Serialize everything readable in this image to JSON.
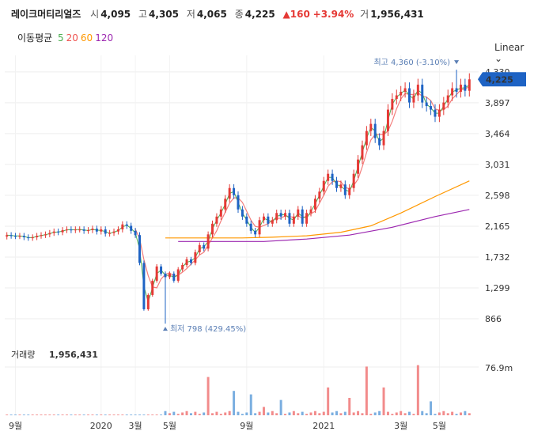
{
  "header": {
    "name": "레이크머티리얼즈",
    "open_label": "시",
    "open": "4,095",
    "high_label": "고",
    "high": "4,305",
    "low_label": "저",
    "low": "4,065",
    "close_label": "종",
    "close": "4,225",
    "change": "▲160",
    "change_pct": "+3.94%",
    "volume_label": "거",
    "volume": "1,956,431"
  },
  "ma_legend": {
    "label": "이동평균",
    "items": [
      {
        "period": "5",
        "color": "#4caf50"
      },
      {
        "period": "20",
        "color": "#ef5350"
      },
      {
        "period": "60",
        "color": "#ff9800"
      },
      {
        "period": "120",
        "color": "#9c27b0"
      }
    ]
  },
  "scale_toggle": {
    "label": "Linear",
    "icon": "chevron-down-icon"
  },
  "annotations": {
    "high": "최고 4,360 (-3.10%)",
    "low": "최저 798 (429.45%)",
    "current_price": "4,225"
  },
  "volume_panel": {
    "label": "거래량",
    "value": "1,956,431",
    "max_label": "76.9m"
  },
  "colors": {
    "up": "#e53935",
    "down": "#1e63c4",
    "ma5": "#4caf50",
    "ma20": "#ef5350",
    "ma60": "#ff9800",
    "ma120": "#9c27b0",
    "up_volume": "#f28b8b",
    "down_volume": "#7aaee0"
  },
  "chart_data": {
    "type": "candlestick",
    "price_axis": {
      "ticks": [
        "4,330",
        "3,897",
        "3,464",
        "3,031",
        "2,598",
        "2,165",
        "1,732",
        "1,299",
        "866"
      ],
      "range": [
        700,
        4450
      ]
    },
    "time_axis": {
      "labels": [
        "9월",
        "2020",
        "3월",
        "5월",
        "9월",
        "2021",
        "3월",
        "5월"
      ]
    },
    "label_weeks": [
      2,
      22,
      30,
      38,
      56,
      74,
      92,
      101
    ],
    "weeks": 109,
    "closes": [
      2040,
      2030,
      2025,
      2030,
      2010,
      2000,
      2010,
      2030,
      2040,
      2050,
      2070,
      2090,
      2080,
      2110,
      2120,
      2110,
      2120,
      2120,
      2100,
      2110,
      2130,
      2090,
      2120,
      2060,
      2070,
      2090,
      2120,
      2190,
      2170,
      2100,
      2040,
      1650,
      1000,
      1200,
      1400,
      1600,
      1500,
      1450,
      1500,
      1400,
      1560,
      1620,
      1700,
      1650,
      1800,
      1900,
      1850,
      2050,
      2200,
      2300,
      2400,
      2550,
      2700,
      2600,
      2400,
      2300,
      2200,
      2100,
      2050,
      2250,
      2300,
      2200,
      2250,
      2350,
      2300,
      2350,
      2200,
      2300,
      2400,
      2200,
      2350,
      2400,
      2550,
      2650,
      2800,
      2900,
      2800,
      2700,
      2750,
      2600,
      2700,
      2900,
      3100,
      3300,
      3500,
      3600,
      3400,
      3300,
      3500,
      3800,
      3950,
      4000,
      4050,
      4100,
      3900,
      4000,
      4150,
      3900,
      3850,
      3800,
      3700,
      3800,
      3900,
      4000,
      4100,
      4050,
      4150,
      4065,
      4225
    ],
    "high_marker": {
      "week": 105,
      "value": 4360
    },
    "low_marker": {
      "week": 37,
      "value": 798
    },
    "volume_max": 76900000,
    "volume_spikes": {
      "47": 55,
      "53": 35,
      "57": 30,
      "64": 22,
      "75": 40,
      "84": 70,
      "88": 40,
      "96": 72,
      "99": 20,
      "80": 25,
      "60": 12
    },
    "ma60": {
      "from_week": 37,
      "points": [
        [
          37,
          2000
        ],
        [
          55,
          2000
        ],
        [
          62,
          2010
        ],
        [
          70,
          2030
        ],
        [
          78,
          2080
        ],
        [
          85,
          2170
        ],
        [
          92,
          2350
        ],
        [
          100,
          2580
        ],
        [
          108,
          2800
        ]
      ]
    },
    "ma120": {
      "from_week": 40,
      "points": [
        [
          40,
          1950
        ],
        [
          60,
          1950
        ],
        [
          70,
          1985
        ],
        [
          80,
          2040
        ],
        [
          90,
          2150
        ],
        [
          100,
          2300
        ],
        [
          108,
          2400
        ]
      ]
    }
  }
}
